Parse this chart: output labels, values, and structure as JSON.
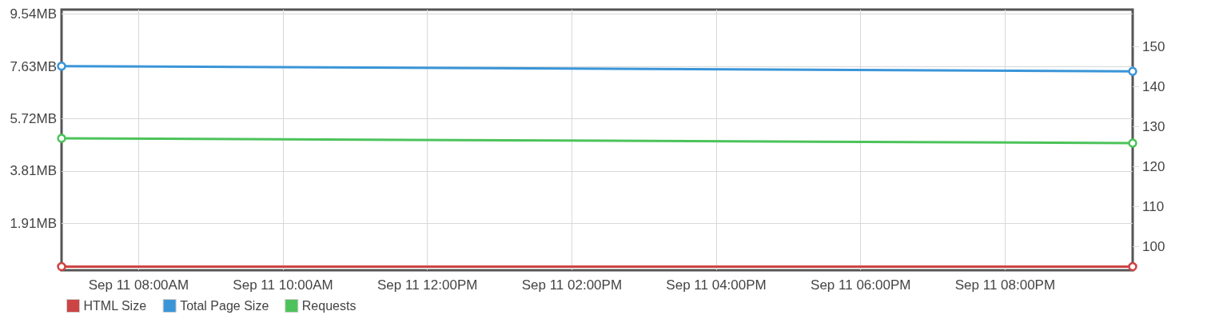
{
  "chart_data": {
    "type": "line",
    "xlim": [
      "--09-11T06:56",
      "--09-11T21:46"
    ],
    "xticks": [
      {
        "value": "--09-11T08:00",
        "label": "Sep 11 08:00AM"
      },
      {
        "value": "--09-11T10:00",
        "label": "Sep 11 10:00AM"
      },
      {
        "value": "--09-11T12:00",
        "label": "Sep 11 12:00PM"
      },
      {
        "value": "--09-11T14:00",
        "label": "Sep 11 02:00PM"
      },
      {
        "value": "--09-11T16:00",
        "label": "Sep 11 04:00PM"
      },
      {
        "value": "--09-11T18:00",
        "label": "Sep 11 06:00PM"
      },
      {
        "value": "--09-11T20:00",
        "label": "Sep 11 08:00PM"
      }
    ],
    "ylim": [
      0.2,
      9.7
    ],
    "yticks": [
      {
        "value": 1.907,
        "label": "1.91MB"
      },
      {
        "value": 3.815,
        "label": "3.81MB"
      },
      {
        "value": 5.722,
        "label": "5.72MB"
      },
      {
        "value": 7.629,
        "label": "7.63MB"
      },
      {
        "value": 9.537,
        "label": "9.54MB"
      }
    ],
    "y2lim": [
      94.1,
      159.3
    ],
    "y2ticks": [
      100,
      110,
      120,
      130,
      140,
      150
    ],
    "x": [
      "--09-11T06:56",
      "--09-11T21:46"
    ],
    "series": [
      {
        "name": "HTML Size",
        "color": "#cc4444",
        "values": [
          0.33,
          0.33
        ]
      },
      {
        "name": "Total Page Size",
        "color": "#3a95d8",
        "values": [
          7.64,
          7.45
        ]
      },
      {
        "name": "Requests",
        "color": "#4cc35a",
        "values": [
          127.1,
          125.9
        ],
        "axis": "y2"
      }
    ],
    "grid": true,
    "legend": "bottom left",
    "marker": "circle",
    "line_style": "solid"
  }
}
